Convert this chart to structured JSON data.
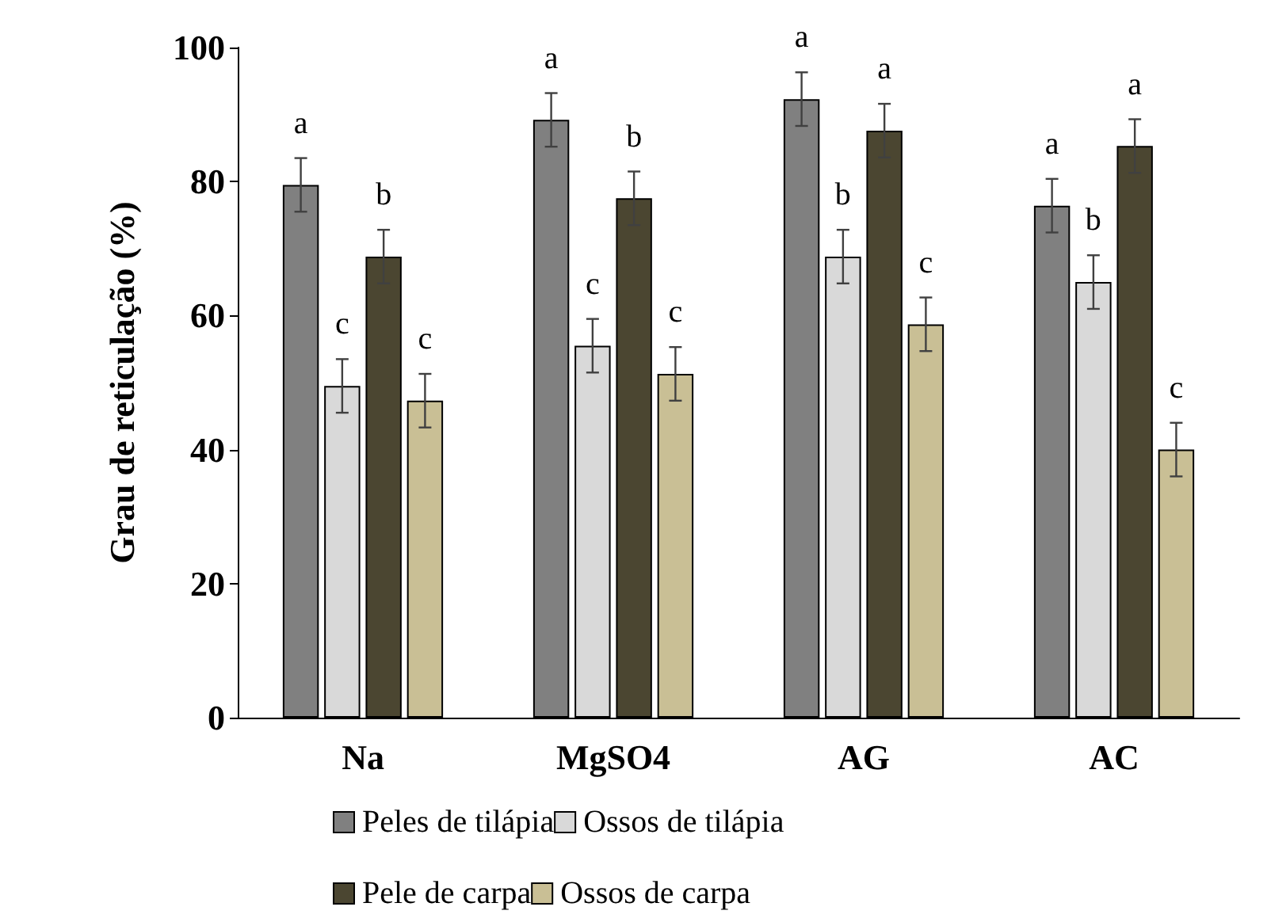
{
  "chart_data": {
    "type": "bar",
    "ylabel": "Grau de reticulação (%)",
    "categories": [
      "Na",
      "MgSO4",
      "AG",
      "AC"
    ],
    "series": [
      {
        "name": "Peles de tilápia",
        "color": "#808080",
        "values": [
          79.5,
          89.2,
          92.3,
          76.4
        ],
        "errors": [
          4,
          4,
          4,
          4
        ],
        "value_labels": [
          "a",
          "a",
          "a",
          "a"
        ]
      },
      {
        "name": "Ossos de tilápia",
        "color": "#d9d9d9",
        "values": [
          49.5,
          55.5,
          68.8,
          65
        ],
        "errors": [
          4,
          4,
          4,
          4
        ],
        "value_labels": [
          "c",
          "c",
          "b",
          "b"
        ]
      },
      {
        "name": "Pele de carpa",
        "color": "#4b4631",
        "values": [
          68.8,
          77.5,
          87.6,
          85.3
        ],
        "errors": [
          4,
          4,
          4,
          4
        ],
        "value_labels": [
          "b",
          "b",
          "a",
          "a"
        ]
      },
      {
        "name": "Ossos de carpa",
        "color": "#c9bf95",
        "values": [
          47.3,
          51.3,
          58.7,
          40
        ],
        "errors": [
          4,
          4,
          4,
          4
        ],
        "value_labels": [
          "c",
          "c",
          "c",
          "c"
        ]
      }
    ],
    "ylim": [
      0,
      100
    ],
    "yticks": [
      0,
      20,
      40,
      60,
      80,
      100
    ],
    "grid": false,
    "legend": "bottom"
  }
}
